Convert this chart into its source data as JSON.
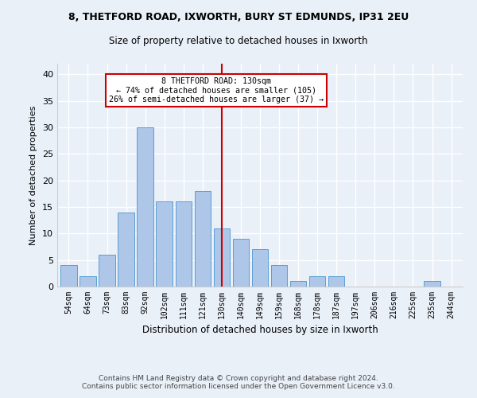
{
  "title1": "8, THETFORD ROAD, IXWORTH, BURY ST EDMUNDS, IP31 2EU",
  "title2": "Size of property relative to detached houses in Ixworth",
  "xlabel": "Distribution of detached houses by size in Ixworth",
  "ylabel": "Number of detached properties",
  "categories": [
    "54sqm",
    "64sqm",
    "73sqm",
    "83sqm",
    "92sqm",
    "102sqm",
    "111sqm",
    "121sqm",
    "130sqm",
    "140sqm",
    "149sqm",
    "159sqm",
    "168sqm",
    "178sqm",
    "187sqm",
    "197sqm",
    "206sqm",
    "216sqm",
    "225sqm",
    "235sqm",
    "244sqm"
  ],
  "values": [
    4,
    2,
    6,
    14,
    30,
    16,
    16,
    18,
    11,
    9,
    7,
    4,
    1,
    2,
    2,
    0,
    0,
    0,
    0,
    1,
    0
  ],
  "bar_color": "#aec6e8",
  "bar_edge_color": "#5a9fd4",
  "vline_x_index": 8,
  "vline_color": "#cc0000",
  "annotation_text": "8 THETFORD ROAD: 130sqm\n← 74% of detached houses are smaller (105)\n26% of semi-detached houses are larger (37) →",
  "annotation_box_color": "#cc0000",
  "ylim": [
    0,
    42
  ],
  "yticks": [
    0,
    5,
    10,
    15,
    20,
    25,
    30,
    35,
    40
  ],
  "footer": "Contains HM Land Registry data © Crown copyright and database right 2024.\nContains public sector information licensed under the Open Government Licence v3.0.",
  "bg_color": "#eaf0f8",
  "grid_color": "#ffffff"
}
